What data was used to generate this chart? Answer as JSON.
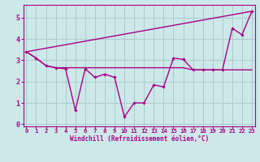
{
  "background_color": "#cce8e8",
  "grid_color": "#aacccc",
  "line_color": "#aa0088",
  "xlim": [
    -0.3,
    23.3
  ],
  "ylim": [
    -0.1,
    5.6
  ],
  "xlabel": "Windchill (Refroidissement éolien,°C)",
  "yticks": [
    0,
    1,
    2,
    3,
    4,
    5
  ],
  "xticks": [
    0,
    1,
    2,
    3,
    4,
    5,
    6,
    7,
    8,
    9,
    10,
    11,
    12,
    13,
    14,
    15,
    16,
    17,
    18,
    19,
    20,
    21,
    22,
    23
  ],
  "line1_x": [
    0,
    1,
    2,
    3,
    4,
    5,
    6,
    7,
    8,
    9,
    10,
    11,
    12,
    13,
    14,
    15,
    16,
    17,
    18,
    19,
    20,
    21,
    22,
    23
  ],
  "line1_y": [
    3.4,
    3.1,
    2.75,
    2.65,
    2.6,
    0.65,
    2.6,
    2.2,
    2.35,
    2.2,
    0.35,
    1.0,
    1.0,
    1.85,
    1.75,
    3.1,
    3.05,
    2.55,
    2.55,
    2.55,
    2.55,
    4.5,
    4.2,
    5.3
  ],
  "line2_x": [
    0,
    1,
    2,
    3,
    4,
    5,
    6,
    7,
    8,
    9,
    10,
    11,
    12,
    13,
    14,
    15,
    16,
    17,
    18,
    19,
    20,
    21,
    22,
    23
  ],
  "line2_y": [
    3.4,
    3.1,
    2.75,
    2.65,
    2.65,
    2.65,
    2.65,
    2.65,
    2.65,
    2.65,
    2.65,
    2.65,
    2.65,
    2.65,
    2.65,
    2.65,
    2.65,
    2.55,
    2.55,
    2.55,
    2.55,
    2.55,
    2.55,
    2.55
  ],
  "line3_x": [
    0,
    23
  ],
  "line3_y": [
    3.4,
    5.3
  ]
}
